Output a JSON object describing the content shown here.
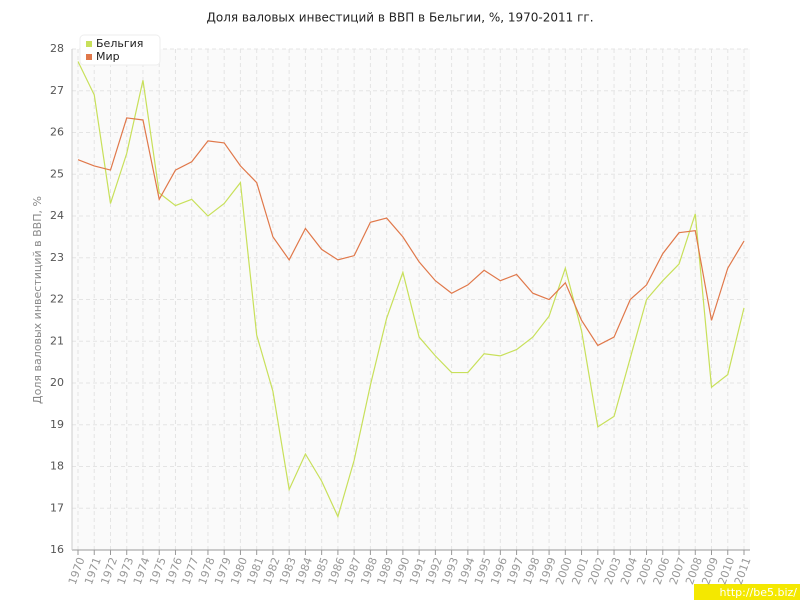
{
  "chart_data": {
    "type": "line",
    "title": "Доля валовых инвестиций в ВВП в Бельгии, %, 1970-2011 гг.",
    "y_label": "Доля валовых инвестиций в ВВП, %",
    "watermark": "http://be5.biz/",
    "categories": [
      "1970",
      "1971",
      "1972",
      "1973",
      "1974",
      "1975",
      "1976",
      "1977",
      "1978",
      "1979",
      "1980",
      "1981",
      "1982",
      "1983",
      "1984",
      "1985",
      "1986",
      "1987",
      "1988",
      "1989",
      "1990",
      "1991",
      "1992",
      "1993",
      "1994",
      "1995",
      "1996",
      "1997",
      "1998",
      "1999",
      "2000",
      "2001",
      "2002",
      "2003",
      "2004",
      "2005",
      "2006",
      "2007",
      "2008",
      "2009",
      "2010",
      "2011"
    ],
    "series": [
      {
        "name": "Бельгия",
        "color": "#c8e05a",
        "values": [
          27.7,
          26.9,
          24.3,
          25.5,
          27.25,
          24.55,
          24.25,
          24.4,
          24.0,
          24.3,
          24.8,
          21.15,
          19.8,
          17.45,
          18.3,
          17.65,
          16.8,
          18.15,
          19.95,
          21.55,
          22.65,
          21.1,
          20.65,
          20.25,
          20.25,
          20.7,
          20.65,
          20.8,
          21.1,
          21.6,
          22.75,
          21.25,
          18.95,
          19.2,
          20.6,
          22.0,
          22.45,
          22.85,
          24.05,
          19.9,
          20.2,
          21.8
        ]
      },
      {
        "name": "Мир",
        "color": "#e0784a",
        "values": [
          25.35,
          25.2,
          25.1,
          26.35,
          26.3,
          24.4,
          25.1,
          25.3,
          25.8,
          25.75,
          25.2,
          24.8,
          23.5,
          22.95,
          23.7,
          23.2,
          22.95,
          23.05,
          23.85,
          23.95,
          23.5,
          22.9,
          22.45,
          22.15,
          22.35,
          22.7,
          22.45,
          22.6,
          22.15,
          22.0,
          22.4,
          21.5,
          20.9,
          21.1,
          22.0,
          22.35,
          23.1,
          23.6,
          23.65,
          21.5,
          22.75,
          23.4
        ]
      }
    ],
    "ylim": [
      16,
      28
    ],
    "yticks": [
      16,
      17,
      18,
      19,
      20,
      21,
      22,
      23,
      24,
      25,
      26,
      27,
      28
    ],
    "grid": true,
    "legend": "top-left"
  }
}
